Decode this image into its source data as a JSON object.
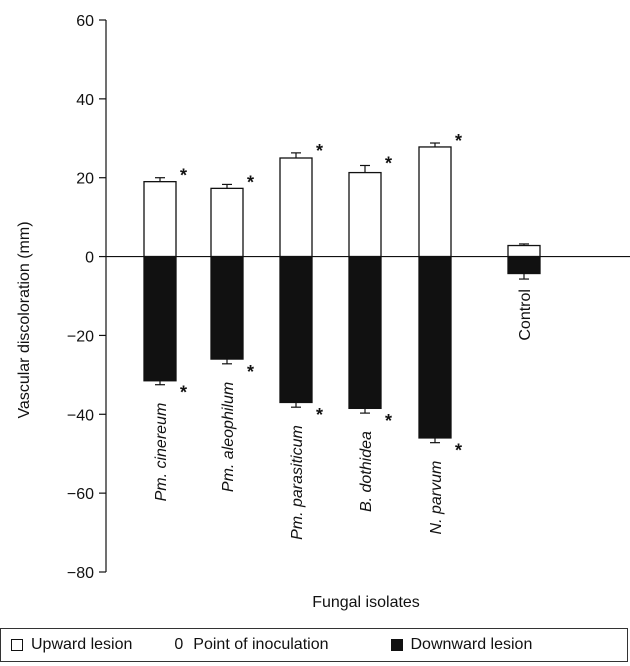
{
  "chart_data": {
    "type": "bar",
    "xlabel": "Fungal isolates",
    "ylabel": "Vascular discoloration (mm)",
    "ylim": [
      -80,
      60
    ],
    "yticks": [
      60,
      40,
      20,
      0,
      -20,
      -40,
      -60,
      -80
    ],
    "yticks_labels": [
      "60",
      "40",
      "20",
      "0",
      "−20",
      "−40",
      "−60",
      "−80"
    ],
    "grid": false,
    "categories": [
      "Pm. cinereum",
      "Pm. aleophilum",
      "Pm. parasiticum",
      "B. dothidea",
      "N. parvum",
      "Control"
    ],
    "category_italic": [
      true,
      true,
      true,
      true,
      true,
      false
    ],
    "series": [
      {
        "name": "Upward lesion",
        "values": [
          19,
          17.3,
          25,
          21.3,
          27.8,
          2.8
        ],
        "errors": [
          1.0,
          1.0,
          1.3,
          1.8,
          1.0,
          0.4
        ],
        "color": "#ffffff"
      },
      {
        "name": "Downward lesion",
        "values": [
          -31.5,
          -26,
          -37,
          -38.5,
          -46,
          -4.3
        ],
        "errors": [
          1.0,
          1.2,
          1.2,
          1.2,
          1.2,
          1.4
        ],
        "color": "#111111"
      }
    ],
    "significance_marker": "*",
    "significant": [
      true,
      true,
      true,
      true,
      true,
      false
    ]
  },
  "legend": {
    "upward_label": "Upward lesion",
    "point_symbol": "0",
    "point_label": "Point of inoculation",
    "downward_label": "Downward lesion"
  }
}
